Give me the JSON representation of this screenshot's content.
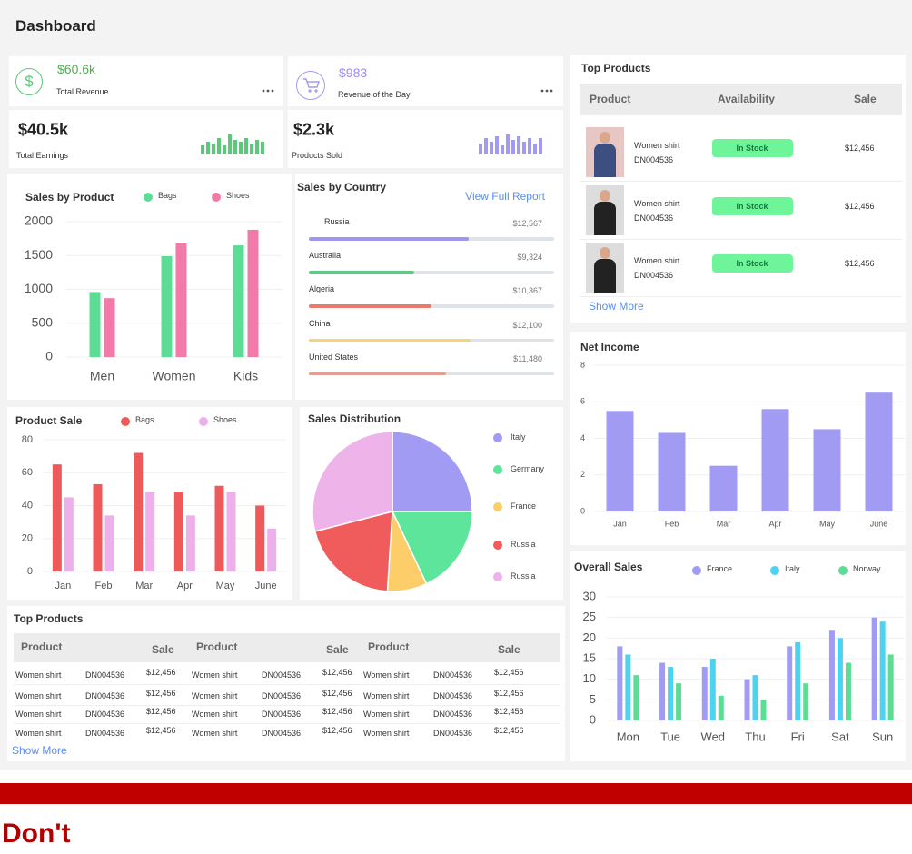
{
  "header": {
    "title": "Dashboard"
  },
  "stats": [
    {
      "icon": "$",
      "value": "$60.6k",
      "label": "Total Revenue"
    },
    {
      "value": "$983",
      "label": "Revenue of the Day"
    },
    {
      "value": "$40.5k",
      "label": "Total Earnings",
      "sparkline": [
        10,
        14,
        12,
        18,
        10,
        22,
        16,
        14,
        18,
        12,
        16,
        14
      ]
    },
    {
      "value": "$2.3k",
      "label": "Products Sold",
      "sparkline": [
        12,
        18,
        14,
        20,
        10,
        22,
        16,
        20,
        14,
        18,
        12,
        18
      ]
    }
  ],
  "sales_by_country": {
    "title": "Sales by Country",
    "link": "View Full Report",
    "rows": [
      {
        "country": "Russia",
        "value": "$12,567",
        "progress": 65,
        "color": "#9d97ee"
      },
      {
        "country": "Australia",
        "value": "$9,324",
        "progress": 43,
        "color": "#5ecb85"
      },
      {
        "country": "Algeria",
        "value": "$10,367",
        "progress": 50,
        "color": "#e77c6c"
      },
      {
        "country": "China",
        "value": "$12,100",
        "progress": 66,
        "color": "#f5d57a"
      },
      {
        "country": "United States",
        "value": "$11,480",
        "progress": 56,
        "color": "#e0a091"
      }
    ]
  },
  "top_products": {
    "title": "Top Products",
    "columns": [
      "Product",
      "Availability",
      "Sale"
    ],
    "rows": [
      {
        "name": "Women shirt",
        "code": "DN004536",
        "availability": "In Stock",
        "sale": "$12,456"
      },
      {
        "name": "Women shirt",
        "code": "DN004536",
        "availability": "In Stock",
        "sale": "$12,456"
      },
      {
        "name": "Women shirt",
        "code": "DN004536",
        "availability": "In Stock",
        "sale": "$12,456"
      }
    ],
    "more": "Show More"
  },
  "top_products_table": {
    "title": "Top Products",
    "columns": [
      "Product",
      "Sale",
      "Product",
      "Sale",
      "Product",
      "Sale"
    ],
    "rows": [
      [
        "Women shirt",
        "DN004536",
        "$12,456",
        "Women shirt",
        "DN004536",
        "$12,456",
        "Women shirt",
        "DN004536",
        "$12,456"
      ],
      [
        "Women shirt",
        "DN004536",
        "$12,456",
        "Women shirt",
        "DN004536",
        "$12,456",
        "Women shirt",
        "DN004536",
        "$12,456"
      ],
      [
        "Women shirt",
        "DN004536",
        "$12,456",
        "Women shirt",
        "DN004536",
        "$12,456",
        "Women shirt",
        "DN004536",
        "$12,456"
      ],
      [
        "Women shirt",
        "DN004536",
        "$12,456",
        "Women shirt",
        "DN004536",
        "$12,456",
        "Women shirt",
        "DN004536",
        "$12,456"
      ]
    ],
    "more": "Show More"
  },
  "chart_data": [
    {
      "type": "bar",
      "title": "Sales by Product",
      "categories": [
        "Men",
        "Women",
        "Kids"
      ],
      "series": [
        {
          "name": "Bags",
          "color": "#5ddc95",
          "values": [
            960,
            1490,
            1650
          ]
        },
        {
          "name": "Shoes",
          "color": "#f27aa8",
          "values": [
            870,
            1680,
            1880
          ]
        }
      ],
      "ylim": [
        0,
        2000
      ],
      "yticks": [
        0,
        500,
        1000,
        1500,
        2000
      ],
      "grid": true
    },
    {
      "type": "bar",
      "title": "Product Sale",
      "categories": [
        "Jan",
        "Feb",
        "Mar",
        "Apr",
        "May",
        "June"
      ],
      "series": [
        {
          "name": "Bags",
          "color": "#ee5a5a",
          "values": [
            65,
            53,
            72,
            48,
            52,
            40
          ]
        },
        {
          "name": "Shoes",
          "color": "#eeb0ea",
          "values": [
            45,
            34,
            48,
            34,
            48,
            26
          ]
        }
      ],
      "ylim": [
        0,
        80
      ],
      "yticks": [
        0,
        20,
        40,
        60,
        80
      ],
      "grid": true
    },
    {
      "type": "bar",
      "title": "Net Income",
      "categories": [
        "Jan",
        "Feb",
        "Mar",
        "Apr",
        "May",
        "June"
      ],
      "values": [
        5.5,
        4.3,
        2.5,
        5.6,
        4.5,
        6.5
      ],
      "color": "#a29bf4",
      "ylim": [
        0,
        8
      ],
      "yticks": [
        0,
        2,
        4,
        6,
        8
      ],
      "grid": true
    },
    {
      "type": "bar",
      "title": "Overall Sales",
      "categories": [
        "Mon",
        "Tue",
        "Wed",
        "Thu",
        "Fri",
        "Sat",
        "Sun"
      ],
      "series": [
        {
          "name": "France",
          "color": "#a29bf4",
          "values": [
            18,
            14,
            13,
            10,
            18,
            22,
            25
          ]
        },
        {
          "name": "Italy",
          "color": "#4dd3f0",
          "values": [
            16,
            13,
            15,
            11,
            19,
            20,
            24
          ]
        },
        {
          "name": "Norway",
          "color": "#5ddc95",
          "values": [
            11,
            9,
            6,
            5,
            9,
            14,
            16
          ]
        }
      ],
      "ylim": [
        0,
        30
      ],
      "yticks": [
        0,
        5,
        10,
        15,
        20,
        25,
        30
      ],
      "grid": true
    },
    {
      "type": "pie",
      "title": "Sales Distribution",
      "categories": [
        "Italy",
        "Germany",
        "France",
        "Russia",
        "Russia"
      ],
      "values": [
        25,
        18,
        8,
        20,
        29
      ],
      "colors": [
        "#a29bf4",
        "#5ee59c",
        "#fdcd6a",
        "#f05c5c",
        "#eeb3e9"
      ]
    }
  ],
  "footer": {
    "text": "Don't"
  }
}
